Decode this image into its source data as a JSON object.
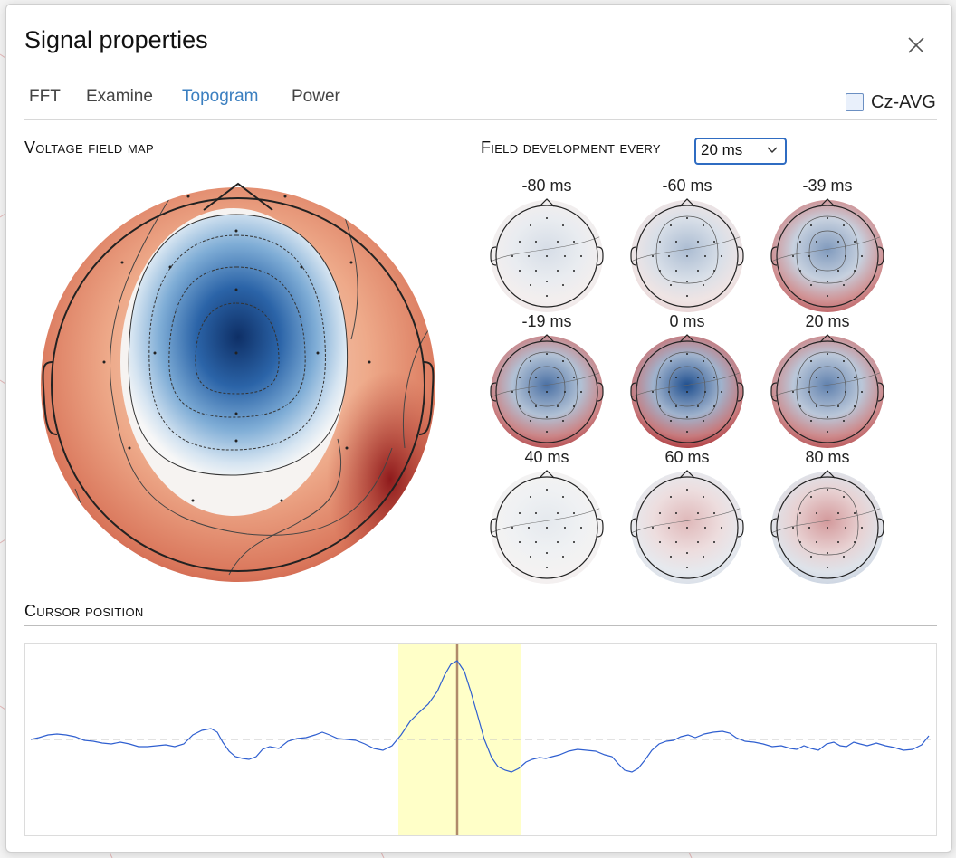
{
  "dialog": {
    "title": "Signal properties",
    "close_icon": "close-icon"
  },
  "tabs": [
    {
      "label": "FFT",
      "active": false
    },
    {
      "label": "Examine",
      "active": false
    },
    {
      "label": "Topogram",
      "active": true
    },
    {
      "label": "Power",
      "active": false
    }
  ],
  "cz_avg": {
    "label": "Cz-AVG",
    "checked": false
  },
  "voltage_map": {
    "title": "Voltage field map"
  },
  "field_development": {
    "title": "Field development every",
    "selected": "20 ms",
    "maps": [
      {
        "label": "-80 ms",
        "center": -0.15
      },
      {
        "label": "-60 ms",
        "center": -0.35
      },
      {
        "label": "-39 ms",
        "center": -0.55
      },
      {
        "label": "-19 ms",
        "center": -0.8
      },
      {
        "label": "0 ms",
        "center": -1.0
      },
      {
        "label": "20 ms",
        "center": -0.7
      },
      {
        "label": "40 ms",
        "center": -0.08
      },
      {
        "label": "60 ms",
        "center": 0.3
      },
      {
        "label": "80 ms",
        "center": 0.45
      }
    ]
  },
  "cursor_position": {
    "title": "Cursor position",
    "highlight_color": "#ffffc8",
    "cursor_color": "#b08a6a",
    "trace_color": "#2f5fd0"
  },
  "colors": {
    "accent": "#3b7fc0",
    "negative": "#1f4f8f",
    "positive": "#a8282c"
  }
}
